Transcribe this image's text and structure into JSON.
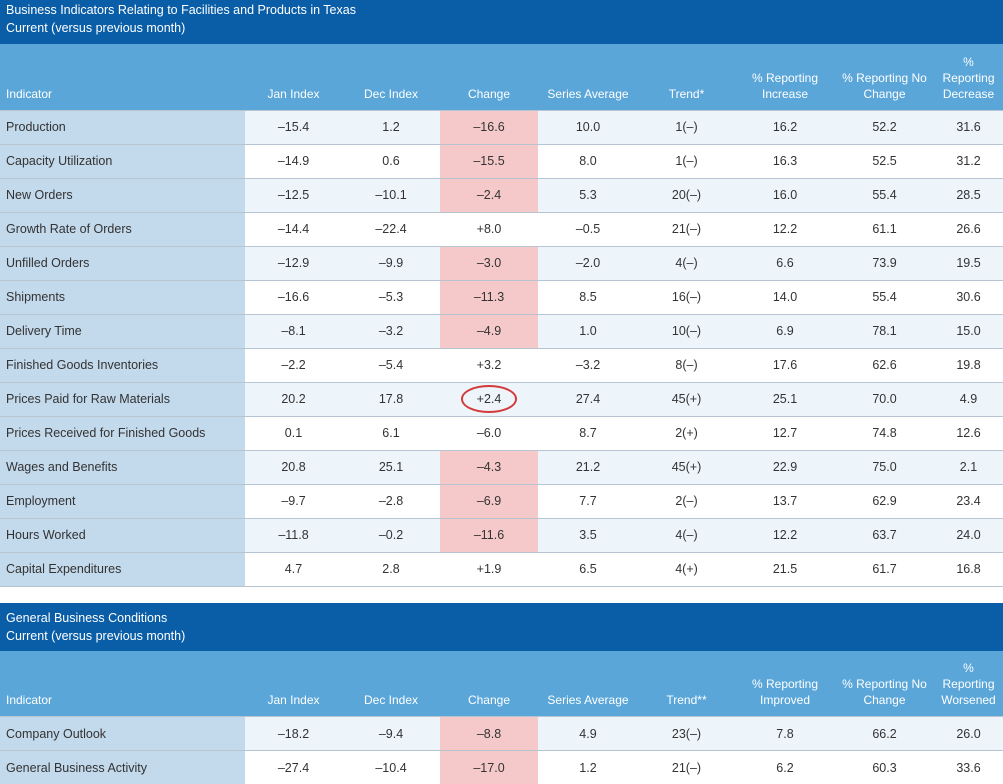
{
  "section1": {
    "title": "Business Indicators Relating to Facilities and Products in Texas",
    "subtitle": "Current (versus previous month)",
    "headers": [
      "Indicator",
      "Jan Index",
      "Dec Index",
      "Change",
      "Series Average",
      "Trend*",
      "% Reporting Increase",
      "% Reporting No Change",
      "% Reporting Decrease"
    ],
    "rows": [
      {
        "indicator": "Production",
        "jan": "–15.4",
        "dec": "1.2",
        "change": "–16.6",
        "avg": "10.0",
        "trend": "1(–)",
        "inc": "16.2",
        "nochg": "52.2",
        "dec_pct": "31.6",
        "neg": true
      },
      {
        "indicator": "Capacity Utilization",
        "jan": "–14.9",
        "dec": "0.6",
        "change": "–15.5",
        "avg": "8.0",
        "trend": "1(–)",
        "inc": "16.3",
        "nochg": "52.5",
        "dec_pct": "31.2",
        "neg": true
      },
      {
        "indicator": "New Orders",
        "jan": "–12.5",
        "dec": "–10.1",
        "change": "–2.4",
        "avg": "5.3",
        "trend": "20(–)",
        "inc": "16.0",
        "nochg": "55.4",
        "dec_pct": "28.5",
        "neg": true
      },
      {
        "indicator": "Growth Rate of Orders",
        "jan": "–14.4",
        "dec": "–22.4",
        "change": "+8.0",
        "avg": "–0.5",
        "trend": "21(–)",
        "inc": "12.2",
        "nochg": "61.1",
        "dec_pct": "26.6",
        "neg": false
      },
      {
        "indicator": "Unfilled Orders",
        "jan": "–12.9",
        "dec": "–9.9",
        "change": "–3.0",
        "avg": "–2.0",
        "trend": "4(–)",
        "inc": "6.6",
        "nochg": "73.9",
        "dec_pct": "19.5",
        "neg": true
      },
      {
        "indicator": "Shipments",
        "jan": "–16.6",
        "dec": "–5.3",
        "change": "–11.3",
        "avg": "8.5",
        "trend": "16(–)",
        "inc": "14.0",
        "nochg": "55.4",
        "dec_pct": "30.6",
        "neg": true
      },
      {
        "indicator": "Delivery Time",
        "jan": "–8.1",
        "dec": "–3.2",
        "change": "–4.9",
        "avg": "1.0",
        "trend": "10(–)",
        "inc": "6.9",
        "nochg": "78.1",
        "dec_pct": "15.0",
        "neg": true
      },
      {
        "indicator": "Finished Goods Inventories",
        "jan": "–2.2",
        "dec": "–5.4",
        "change": "+3.2",
        "avg": "–3.2",
        "trend": "8(–)",
        "inc": "17.6",
        "nochg": "62.6",
        "dec_pct": "19.8",
        "neg": false
      },
      {
        "indicator": "Prices Paid for Raw Materials",
        "jan": "20.2",
        "dec": "17.8",
        "change": "+2.4",
        "avg": "27.4",
        "trend": "45(+)",
        "inc": "25.1",
        "nochg": "70.0",
        "dec_pct": "4.9",
        "neg": false,
        "circled": true
      },
      {
        "indicator": "Prices Received for Finished Goods",
        "jan": "0.1",
        "dec": "6.1",
        "change": "–6.0",
        "avg": "8.7",
        "trend": "2(+)",
        "inc": "12.7",
        "nochg": "74.8",
        "dec_pct": "12.6",
        "neg": false
      },
      {
        "indicator": "Wages and Benefits",
        "jan": "20.8",
        "dec": "25.1",
        "change": "–4.3",
        "avg": "21.2",
        "trend": "45(+)",
        "inc": "22.9",
        "nochg": "75.0",
        "dec_pct": "2.1",
        "neg": true
      },
      {
        "indicator": "Employment",
        "jan": "–9.7",
        "dec": "–2.8",
        "change": "–6.9",
        "avg": "7.7",
        "trend": "2(–)",
        "inc": "13.7",
        "nochg": "62.9",
        "dec_pct": "23.4",
        "neg": true
      },
      {
        "indicator": "Hours Worked",
        "jan": "–11.8",
        "dec": "–0.2",
        "change": "–11.6",
        "avg": "3.5",
        "trend": "4(–)",
        "inc": "12.2",
        "nochg": "63.7",
        "dec_pct": "24.0",
        "neg": true
      },
      {
        "indicator": "Capital Expenditures",
        "jan": "4.7",
        "dec": "2.8",
        "change": "+1.9",
        "avg": "6.5",
        "trend": "4(+)",
        "inc": "21.5",
        "nochg": "61.7",
        "dec_pct": "16.8",
        "neg": false
      }
    ]
  },
  "section2": {
    "title": "General Business Conditions",
    "subtitle": "Current (versus previous month)",
    "headers": [
      "Indicator",
      "Jan Index",
      "Dec Index",
      "Change",
      "Series Average",
      "Trend**",
      "% Reporting Improved",
      "% Reporting No Change",
      "% Reporting Worsened"
    ],
    "rows": [
      {
        "indicator": "Company Outlook",
        "jan": "–18.2",
        "dec": "–9.4",
        "change": "–8.8",
        "avg": "4.9",
        "trend": "23(–)",
        "inc": "7.8",
        "nochg": "66.2",
        "dec_pct": "26.0",
        "neg": true
      },
      {
        "indicator": "General Business Activity",
        "jan": "–27.4",
        "dec": "–10.4",
        "change": "–17.0",
        "avg": "1.2",
        "trend": "21(–)",
        "inc": "6.2",
        "nochg": "60.3",
        "dec_pct": "33.6",
        "neg": true
      }
    ]
  }
}
